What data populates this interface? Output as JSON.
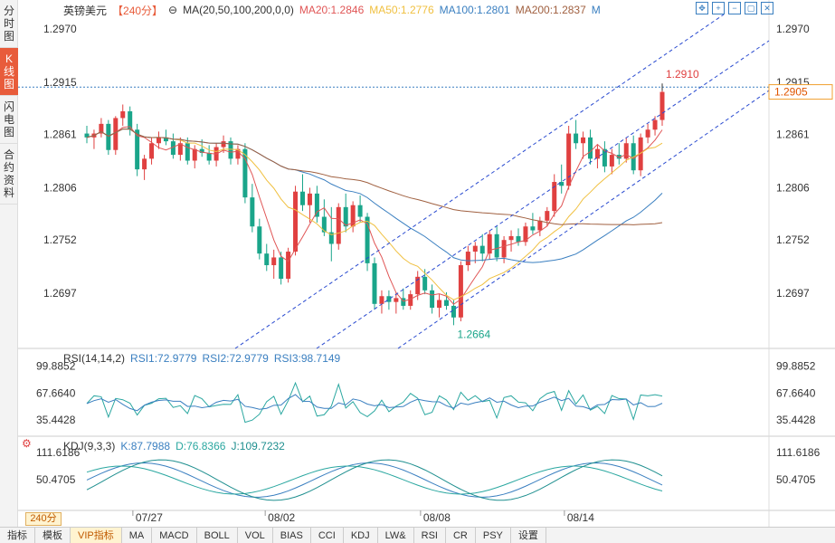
{
  "side_tabs": [
    "分时图",
    "K线图",
    "闪电图",
    "合约资料"
  ],
  "header": {
    "symbol": "英镑美元",
    "period": "【240分】",
    "ma_label": "MA(20,50,100,200,0,0)",
    "ma20": "MA20:1.2846",
    "ma50": "MA50:1.2776",
    "ma100": "MA100:1.2801",
    "ma200": "MA200:1.2837",
    "m": "M"
  },
  "price_axis": [
    "1.2970",
    "1.2915",
    "1.2861",
    "1.2806",
    "1.2752",
    "1.2697"
  ],
  "last_price": "1.2905",
  "annotations": {
    "high": "1.2910",
    "low": "1.2664"
  },
  "rsi": {
    "title": "RSI(14,14,2)",
    "rsi1": "RSI1:72.9779",
    "rsi2": "RSI2:72.9779",
    "rsi3": "RSI3:98.7149",
    "axis": [
      "99.8852",
      "67.6640",
      "35.4428"
    ]
  },
  "kdj": {
    "title": "KDJ(9,3,3)",
    "k": "K:87.7988",
    "d": "D:76.8366",
    "j": "J:109.7232",
    "axis": [
      "111.6186",
      "50.4705"
    ]
  },
  "dates": [
    "07/27",
    "08/02",
    "08/08",
    "08/14"
  ],
  "period_selector": "240分",
  "bottom_tabs": [
    "指标",
    "模板",
    "VIP指标",
    "MA",
    "MACD",
    "BOLL",
    "VOL",
    "BIAS",
    "CCI",
    "KDJ",
    "LW&",
    "RSI",
    "CR",
    "PSY",
    "设置"
  ],
  "colors": {
    "up": "#e04040",
    "down": "#1aa58a",
    "accent": "#e85c3b"
  },
  "tool_icons": [
    "move-icon",
    "zoom-in-icon",
    "zoom-out-icon",
    "window-icon",
    "close-icon"
  ],
  "chart_data": {
    "type": "candlestick",
    "y_range": [
      1.264,
      1.2985
    ],
    "candles": [
      [
        1.2862,
        1.287,
        1.2852,
        1.2858
      ],
      [
        1.2858,
        1.2866,
        1.2846,
        1.2862
      ],
      [
        1.2862,
        1.2878,
        1.2858,
        1.2872
      ],
      [
        1.2872,
        1.2876,
        1.284,
        1.2845
      ],
      [
        1.2845,
        1.288,
        1.284,
        1.2878
      ],
      [
        1.2878,
        1.2892,
        1.287,
        1.2885
      ],
      [
        1.2885,
        1.289,
        1.286,
        1.2866
      ],
      [
        1.2866,
        1.2872,
        1.2818,
        1.2825
      ],
      [
        1.2825,
        1.284,
        1.2814,
        1.2836
      ],
      [
        1.2836,
        1.2858,
        1.283,
        1.2852
      ],
      [
        1.2852,
        1.2864,
        1.2846,
        1.2858
      ],
      [
        1.2858,
        1.2866,
        1.285,
        1.2854
      ],
      [
        1.2854,
        1.2862,
        1.2836,
        1.284
      ],
      [
        1.284,
        1.2858,
        1.2834,
        1.2852
      ],
      [
        1.2852,
        1.2858,
        1.283,
        1.2834
      ],
      [
        1.2834,
        1.285,
        1.2826,
        1.2846
      ],
      [
        1.2846,
        1.2856,
        1.2838,
        1.2842
      ],
      [
        1.2842,
        1.285,
        1.283,
        1.2834
      ],
      [
        1.2834,
        1.2852,
        1.2828,
        1.2848
      ],
      [
        1.2848,
        1.286,
        1.2842,
        1.2854
      ],
      [
        1.2854,
        1.2858,
        1.283,
        1.2836
      ],
      [
        1.2836,
        1.285,
        1.283,
        1.2846
      ],
      [
        1.2846,
        1.2852,
        1.279,
        1.2796
      ],
      [
        1.2796,
        1.281,
        1.276,
        1.2766
      ],
      [
        1.2766,
        1.2774,
        1.2732,
        1.2738
      ],
      [
        1.2738,
        1.2748,
        1.272,
        1.2726
      ],
      [
        1.2726,
        1.2742,
        1.2712,
        1.2734
      ],
      [
        1.2734,
        1.274,
        1.2706,
        1.2712
      ],
      [
        1.2712,
        1.2744,
        1.2708,
        1.274
      ],
      [
        1.274,
        1.2808,
        1.2736,
        1.2802
      ],
      [
        1.2802,
        1.282,
        1.2782,
        1.2788
      ],
      [
        1.2788,
        1.2806,
        1.277,
        1.28
      ],
      [
        1.28,
        1.2808,
        1.277,
        1.2776
      ],
      [
        1.2776,
        1.2794,
        1.2756,
        1.276
      ],
      [
        1.276,
        1.2786,
        1.273,
        1.2748
      ],
      [
        1.2748,
        1.279,
        1.2742,
        1.2786
      ],
      [
        1.2786,
        1.28,
        1.276,
        1.2766
      ],
      [
        1.2766,
        1.2792,
        1.276,
        1.2788
      ],
      [
        1.2788,
        1.2798,
        1.277,
        1.2776
      ],
      [
        1.2776,
        1.278,
        1.272,
        1.2728
      ],
      [
        1.2728,
        1.2734,
        1.268,
        1.2686
      ],
      [
        1.2686,
        1.27,
        1.2676,
        1.2694
      ],
      [
        1.2694,
        1.27,
        1.268,
        1.2688
      ],
      [
        1.2688,
        1.2698,
        1.2676,
        1.2692
      ],
      [
        1.2692,
        1.2702,
        1.268,
        1.2684
      ],
      [
        1.2684,
        1.27,
        1.268,
        1.2696
      ],
      [
        1.2696,
        1.272,
        1.269,
        1.2714
      ],
      [
        1.2714,
        1.2722,
        1.2696,
        1.27
      ],
      [
        1.27,
        1.2706,
        1.2676,
        1.2682
      ],
      [
        1.2682,
        1.2696,
        1.2672,
        1.269
      ],
      [
        1.269,
        1.2698,
        1.268,
        1.2684
      ],
      [
        1.2684,
        1.269,
        1.2664,
        1.2672
      ],
      [
        1.2672,
        1.273,
        1.2668,
        1.2726
      ],
      [
        1.2726,
        1.2746,
        1.272,
        1.274
      ],
      [
        1.274,
        1.275,
        1.2728,
        1.2746
      ],
      [
        1.2746,
        1.2758,
        1.273,
        1.2738
      ],
      [
        1.2738,
        1.2762,
        1.2732,
        1.2758
      ],
      [
        1.2758,
        1.2766,
        1.273,
        1.2734
      ],
      [
        1.2734,
        1.2756,
        1.2728,
        1.2752
      ],
      [
        1.2752,
        1.2762,
        1.274,
        1.2756
      ],
      [
        1.2756,
        1.2764,
        1.2746,
        1.275
      ],
      [
        1.275,
        1.277,
        1.2746,
        1.2766
      ],
      [
        1.2766,
        1.278,
        1.2758,
        1.2762
      ],
      [
        1.2762,
        1.2776,
        1.2756,
        1.2772
      ],
      [
        1.2772,
        1.2786,
        1.2766,
        1.2782
      ],
      [
        1.2782,
        1.282,
        1.2776,
        1.2812
      ],
      [
        1.2812,
        1.283,
        1.28,
        1.2808
      ],
      [
        1.2808,
        1.287,
        1.2804,
        1.2862
      ],
      [
        1.2862,
        1.2876,
        1.2846,
        1.2852
      ],
      [
        1.2852,
        1.2864,
        1.2836,
        1.2858
      ],
      [
        1.2858,
        1.2866,
        1.283,
        1.2836
      ],
      [
        1.2836,
        1.285,
        1.2826,
        1.2846
      ],
      [
        1.2846,
        1.2854,
        1.2822,
        1.2828
      ],
      [
        1.2828,
        1.2846,
        1.282,
        1.284
      ],
      [
        1.284,
        1.2852,
        1.283,
        1.2836
      ],
      [
        1.2836,
        1.2858,
        1.2832,
        1.2852
      ],
      [
        1.2852,
        1.286,
        1.282,
        1.2824
      ],
      [
        1.2824,
        1.2862,
        1.2818,
        1.2858
      ],
      [
        1.2858,
        1.2872,
        1.2852,
        1.2866
      ],
      [
        1.2866,
        1.288,
        1.286,
        1.2876
      ],
      [
        1.2876,
        1.291,
        1.287,
        1.2905
      ]
    ]
  }
}
